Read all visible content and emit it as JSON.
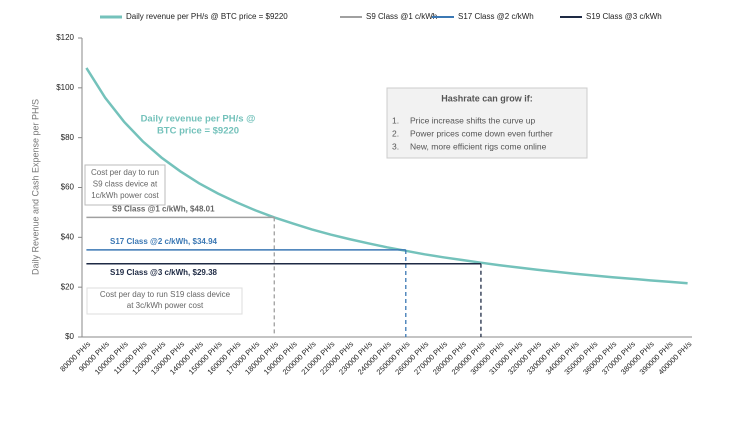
{
  "chart_data": {
    "type": "line",
    "y_label": "Daily Revenue and Cash Expense per PH/S",
    "categories": [
      "80000 PH/s",
      "90000 PH/s",
      "100000 PH/s",
      "110000 PH/s",
      "120000 PH/s",
      "130000 PH/s",
      "140000 PH/s",
      "150000 PH/s",
      "160000 PH/s",
      "170000 PH/s",
      "180000 PH/s",
      "190000 PH/s",
      "200000 PH/s",
      "210000 PH/s",
      "220000 PH/s",
      "230000 PH/s",
      "240000 PH/s",
      "250000 PH/s",
      "260000 PH/s",
      "270000 PH/s",
      "280000 PH/s",
      "290000 PH/s",
      "300000 PH/s",
      "310000 PH/s",
      "320000 PH/s",
      "330000 PH/s",
      "340000 PH/s",
      "350000 PH/s",
      "360000 PH/s",
      "370000 PH/s",
      "380000 PH/s",
      "390000 PH/s",
      "400000 PH/s"
    ],
    "series": [
      {
        "name": "Daily revenue per PH/s @ BTC price = $9220",
        "color": "#74c2bb",
        "values": [
          108,
          96,
          86.4,
          78.5,
          72,
          66.5,
          61.7,
          57.6,
          54,
          50.8,
          48,
          45.5,
          43.2,
          41.1,
          39.3,
          37.6,
          36,
          34.6,
          33.2,
          32,
          30.9,
          29.8,
          28.8,
          27.9,
          27,
          26.2,
          25.4,
          24.7,
          24,
          23.4,
          22.7,
          22.2,
          21.6
        ]
      },
      {
        "name": "S9 Class @1 c/kWh",
        "color": "#a0a0a0",
        "values": [
          48.01,
          48.01,
          48.01,
          48.01,
          48.01,
          48.01,
          48.01,
          48.01,
          48.01,
          48.01,
          48.01,
          null,
          null,
          null,
          null,
          null,
          null,
          null,
          null,
          null,
          null,
          null,
          null,
          null,
          null,
          null,
          null,
          null,
          null,
          null,
          null,
          null,
          null
        ]
      },
      {
        "name": "S17 Class @2 c/kWh",
        "color": "#3b78b4",
        "values": [
          34.94,
          34.94,
          34.94,
          34.94,
          34.94,
          34.94,
          34.94,
          34.94,
          34.94,
          34.94,
          34.94,
          34.94,
          34.94,
          34.94,
          34.94,
          34.94,
          34.94,
          34.94,
          null,
          null,
          null,
          null,
          null,
          null,
          null,
          null,
          null,
          null,
          null,
          null,
          null,
          null,
          null
        ]
      },
      {
        "name": "S19 Class @3 c/kWh",
        "color": "#1e2a44",
        "values": [
          29.38,
          29.38,
          29.38,
          29.38,
          29.38,
          29.38,
          29.38,
          29.38,
          29.38,
          29.38,
          29.38,
          29.38,
          29.38,
          29.38,
          29.38,
          29.38,
          29.38,
          29.38,
          29.38,
          29.38,
          29.38,
          29.38,
          null,
          null,
          null,
          null,
          null,
          null,
          null,
          null,
          null,
          null,
          null
        ]
      }
    ],
    "ylim": [
      0,
      120
    ],
    "yticks": [
      {
        "value": 0,
        "label": "$0"
      },
      {
        "value": 20,
        "label": "$20"
      },
      {
        "value": 40,
        "label": "$40"
      },
      {
        "value": 60,
        "label": "$60"
      },
      {
        "value": 80,
        "label": "$80"
      },
      {
        "value": 100,
        "label": "$100"
      },
      {
        "value": 120,
        "label": "$120"
      }
    ],
    "line_labels": [
      "S9 Class @1 c/kWh, $48.01",
      "S17 Class @2 c/kWh, $34.94",
      "S19 Class @3 c/kWh, $29.38"
    ],
    "curve_label": [
      "Daily revenue per PH/s @",
      "BTC price = $9220"
    ],
    "note_s9": [
      "Cost per day to run",
      "S9 class device at",
      "1c/kWh power cost"
    ],
    "note_s19": [
      "Cost per day to run S19 class device",
      "at 3c/kWh power cost"
    ],
    "hashrate_box": {
      "title": "Hashrate can grow if:",
      "items": [
        "Price increase shifts the curve up",
        "Power prices come down even further",
        "New, more efficient rigs come online"
      ],
      "numbers": [
        "1.",
        "2.",
        "3."
      ]
    }
  }
}
